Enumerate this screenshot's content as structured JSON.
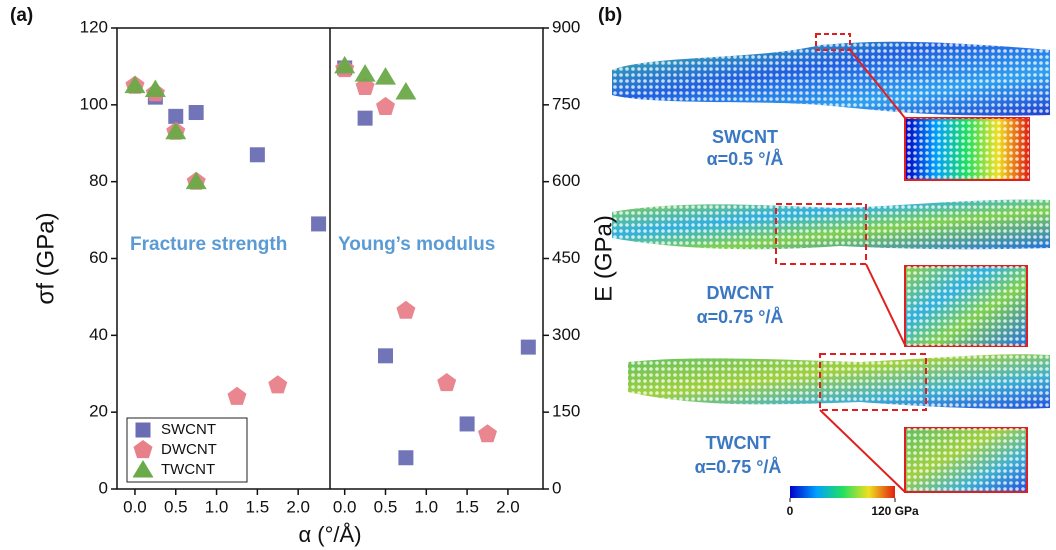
{
  "panel_labels": [
    "(a)",
    "(b)"
  ],
  "chart_data": [
    {
      "type": "scatter",
      "xlabel": "α (°/Å)",
      "ylabel": "σf (GPa)",
      "annotation": "Fracture strength",
      "y_axis": "left",
      "legend": "lower left",
      "xlim": [
        -0.22,
        2.39
      ],
      "xticks": [
        {
          "value": 0,
          "label": "0.0"
        },
        {
          "value": 0.5,
          "label": "0.5"
        },
        {
          "value": 1,
          "label": "1.0"
        },
        {
          "value": 1.5,
          "label": "1.5"
        },
        {
          "value": 2,
          "label": "2.0"
        }
      ],
      "ylim": [
        0,
        120
      ],
      "yticks": [
        0,
        20,
        40,
        60,
        80,
        100,
        120
      ],
      "series": [
        {
          "name": "SWCNT",
          "color": "#6a6db4",
          "marker": "square",
          "x": [
            0.25,
            0.5,
            0.75,
            1.5,
            2.25
          ],
          "values": [
            102,
            97,
            98,
            87,
            69
          ]
        },
        {
          "name": "DWCNT",
          "color": "#e8808a",
          "marker": "pentagon",
          "x": [
            0,
            0.25,
            0.5,
            0.75,
            1.25,
            1.75
          ],
          "values": [
            105,
            103,
            93,
            80,
            24,
            27
          ]
        },
        {
          "name": "TWCNT",
          "color": "#6aaa48",
          "marker": "triangle",
          "x": [
            0,
            0.25,
            0.5,
            0.75
          ],
          "values": [
            105,
            104,
            93,
            80
          ]
        }
      ]
    },
    {
      "type": "scatter",
      "ylabel": "E (GPa)",
      "annotation": "Young’s modulus",
      "y_axis": "right",
      "xlim": [
        -0.18,
        2.43
      ],
      "xticks": [
        {
          "value": 0,
          "label": "0.0"
        },
        {
          "value": 0.5,
          "label": "0.5"
        },
        {
          "value": 1,
          "label": "1.0"
        },
        {
          "value": 1.5,
          "label": "1.5"
        },
        {
          "value": 2,
          "label": "2.0"
        }
      ],
      "ylim": [
        0,
        900
      ],
      "yticks": [
        0,
        150,
        300,
        450,
        600,
        750,
        900
      ],
      "series": [
        {
          "color": "#6a6db4",
          "marker": "square",
          "x": [
            0,
            0.25,
            0.5,
            0.75,
            1.5,
            2.25
          ],
          "values": [
            822,
            724,
            260,
            61,
            127,
            277
          ]
        },
        {
          "color": "#e8808a",
          "marker": "pentagon",
          "x": [
            0,
            0.25,
            0.5,
            0.75,
            1.25,
            1.75
          ],
          "values": [
            820,
            785,
            746,
            348,
            207,
            107
          ]
        },
        {
          "color": "#6aaa48",
          "marker": "triangle",
          "x": [
            0,
            0.25,
            0.5,
            0.75
          ],
          "values": [
            826,
            810,
            804,
            775
          ]
        }
      ]
    }
  ],
  "tubes": [
    {
      "name": "SWCNT",
      "alpha": "α=0.5 °/Å"
    },
    {
      "name": "DWCNT",
      "alpha": "α=0.75 °/Å"
    },
    {
      "name": "TWCNT",
      "alpha": "α=0.75 °/Å"
    }
  ],
  "colorbar": {
    "range": [
      0,
      120
    ],
    "ticks": [
      0,
      {
        "value": 120,
        "label": "120 GPa"
      }
    ]
  }
}
